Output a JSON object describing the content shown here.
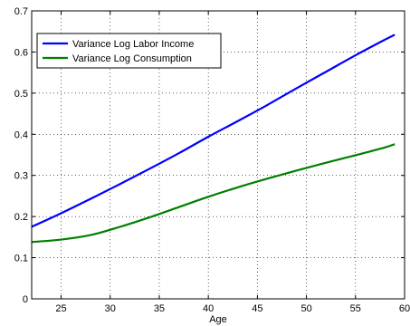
{
  "chart_data": {
    "type": "line",
    "title": "",
    "xlabel": "Age",
    "ylabel": "",
    "xlim": [
      22,
      60
    ],
    "ylim": [
      0,
      0.7
    ],
    "xticks": [
      25,
      30,
      35,
      40,
      45,
      50,
      55,
      60
    ],
    "yticks": [
      0,
      0.1,
      0.2,
      0.3,
      0.4,
      0.5,
      0.6,
      0.7
    ],
    "xtick_labels": [
      "25",
      "30",
      "35",
      "40",
      "45",
      "50",
      "55",
      "60"
    ],
    "ytick_labels": [
      "0",
      "0.1",
      "0.2",
      "0.3",
      "0.4",
      "0.5",
      "0.6",
      "0.7"
    ],
    "grid": true,
    "legend_position": "top-left",
    "x": [
      22,
      25,
      28,
      31,
      34,
      37,
      40,
      43,
      46,
      49,
      52,
      55,
      58,
      59
    ],
    "series": [
      {
        "name": "Variance Log Labor Income",
        "color": "#0000ff",
        "values": [
          0.175,
          0.208,
          0.243,
          0.279,
          0.316,
          0.354,
          0.394,
          0.432,
          0.471,
          0.512,
          0.552,
          0.592,
          0.63,
          0.642
        ]
      },
      {
        "name": "Variance Log Consumption",
        "color": "#007f00",
        "values": [
          0.138,
          0.144,
          0.155,
          0.175,
          0.198,
          0.223,
          0.248,
          0.271,
          0.292,
          0.312,
          0.331,
          0.349,
          0.368,
          0.376
        ]
      }
    ]
  }
}
